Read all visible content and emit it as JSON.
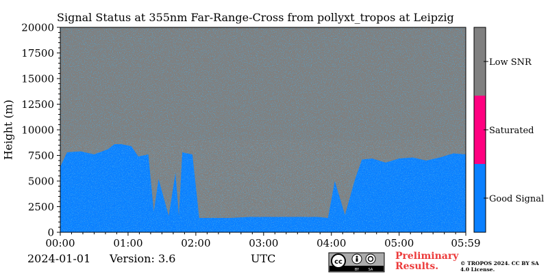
{
  "chart_data": {
    "type": "heatmap",
    "title": "Signal Status at 355nm Far-Range-Cross from pollyxt_tropos at Leipzig",
    "xlabel": "UTC",
    "ylabel": "Height (m)",
    "x_tick_labels": [
      "00:00",
      "01:00",
      "02:00",
      "03:00",
      "04:00",
      "05:00",
      "05:59"
    ],
    "x_tick_hours": [
      0,
      1,
      2,
      3,
      4,
      5,
      5.9833
    ],
    "xlim_hours": [
      0,
      5.9833
    ],
    "y_ticks": [
      0,
      2500,
      5000,
      7500,
      10000,
      12500,
      15000,
      17500,
      20000
    ],
    "ylim": [
      0,
      20000
    ],
    "categories": [
      {
        "name": "Good Signal",
        "color": "#0a80ff"
      },
      {
        "name": "Saturated",
        "color": "#ff0080"
      },
      {
        "name": "Low SNR",
        "color": "#808080"
      }
    ],
    "colorbar_labels": [
      "Good Signal",
      "Saturated",
      "Low SNR"
    ],
    "good_signal_top_profile": {
      "hours": [
        0.0,
        0.1,
        0.3,
        0.5,
        0.7,
        0.8,
        0.9,
        1.05,
        1.15,
        1.3,
        1.38,
        1.45,
        1.6,
        1.7,
        1.75,
        1.8,
        1.95,
        2.05,
        2.2,
        2.5,
        2.8,
        3.0,
        3.3,
        3.6,
        3.8,
        3.95,
        4.05,
        4.2,
        4.35,
        4.45,
        4.6,
        4.8,
        5.0,
        5.2,
        5.4,
        5.6,
        5.8,
        5.9833
      ],
      "top_m": [
        6400,
        7800,
        7900,
        7600,
        8100,
        8600,
        8600,
        8400,
        7400,
        7600,
        2000,
        5200,
        1600,
        5800,
        1600,
        7800,
        7600,
        1400,
        1400,
        1400,
        1500,
        1500,
        1500,
        1500,
        1500,
        1400,
        5000,
        1700,
        5200,
        7100,
        7200,
        6800,
        7200,
        7300,
        7000,
        7300,
        7700,
        7600
      ]
    }
  },
  "footer": {
    "date": "2024-01-01",
    "version": "Version: 3.6",
    "preliminary": "Preliminary Results.",
    "copyright": "© TROPOS 2024. CC BY SA 4.0 License.",
    "license_badge": "cc-by-sa-badge"
  }
}
